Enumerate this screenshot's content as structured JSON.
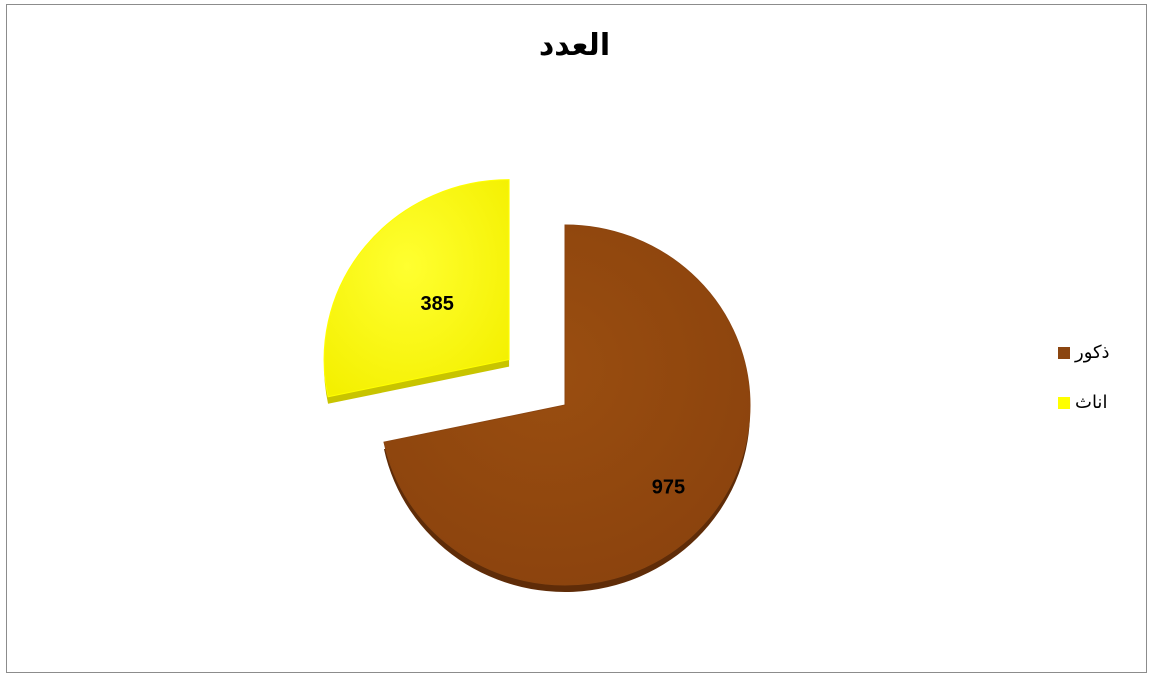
{
  "chart_data": {
    "type": "pie",
    "title": "العدد",
    "categories": [
      "ذكور",
      "اناث"
    ],
    "values": [
      975,
      385
    ],
    "colors": [
      "#8B4510",
      "#FFFF00"
    ],
    "data_labels": [
      "975",
      "385"
    ],
    "legend_position": "right",
    "exploded_slice": "اناث"
  }
}
